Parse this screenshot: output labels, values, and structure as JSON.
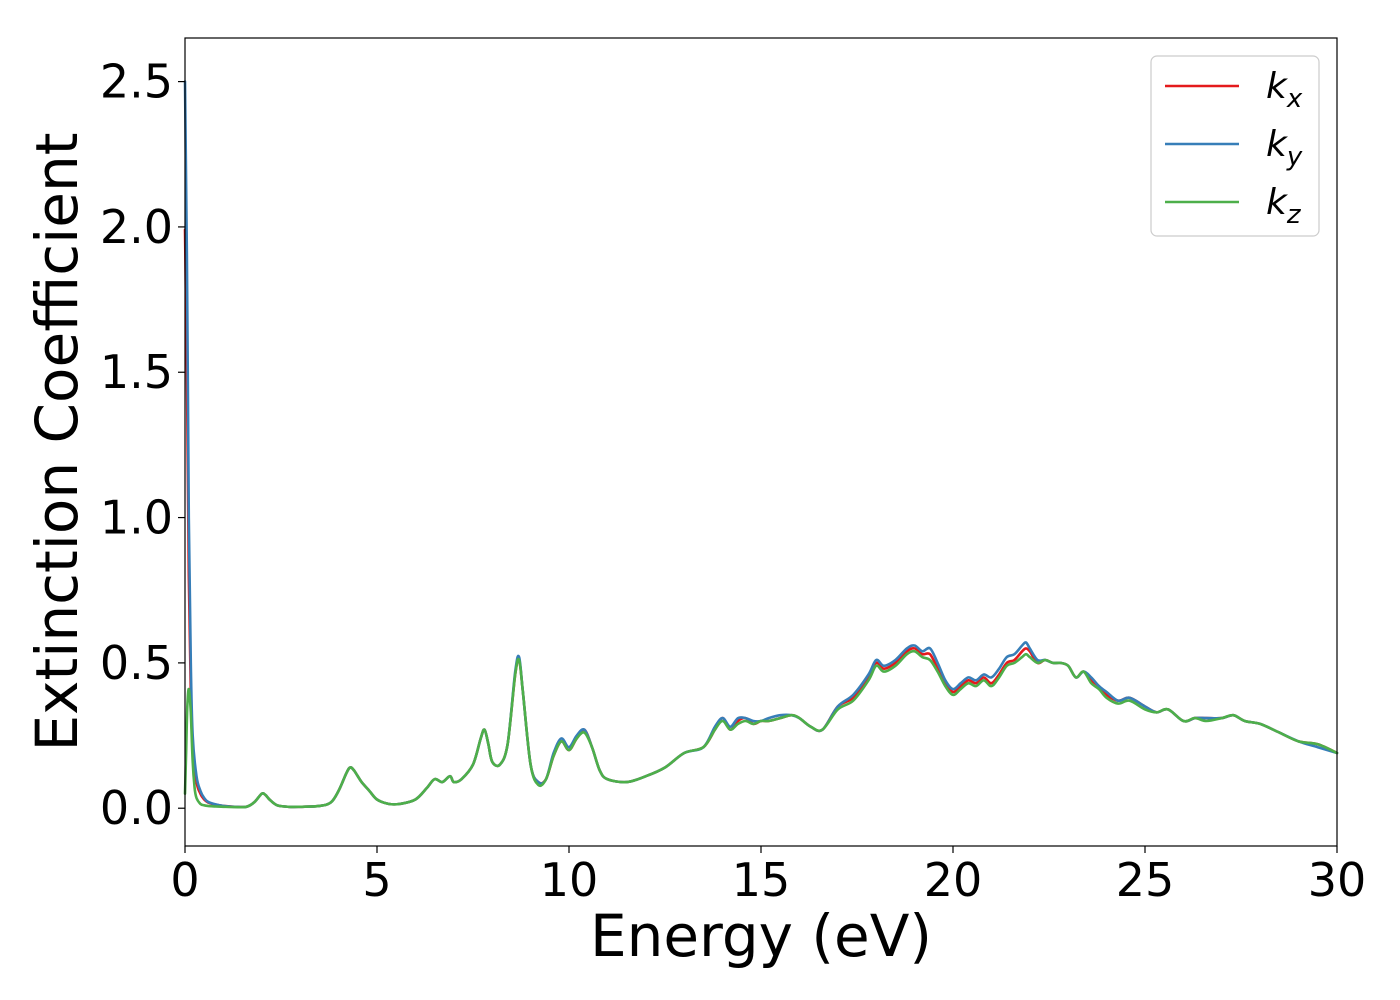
{
  "chart_data": {
    "type": "line",
    "title": "",
    "xlabel": "Energy (eV)",
    "ylabel": "Extinction Coefficient",
    "xlim": [
      0,
      30
    ],
    "ylim": [
      -0.13,
      2.65
    ],
    "xticks": [
      0,
      5,
      10,
      15,
      20,
      25,
      30
    ],
    "xtick_labels": [
      "0",
      "5",
      "10",
      "15",
      "20",
      "25",
      "30"
    ],
    "yticks": [
      0.0,
      0.5,
      1.0,
      1.5,
      2.0,
      2.5
    ],
    "ytick_labels": [
      "0.0",
      "0.5",
      "1.0",
      "1.5",
      "2.0",
      "2.5"
    ],
    "grid": false,
    "legend_position": "top-right",
    "series": [
      {
        "name": "k",
        "subscript": "x",
        "color": "#e41a1c",
        "x": [
          0.0,
          0.05,
          0.1,
          0.15,
          0.2,
          0.3,
          0.4,
          0.5,
          0.6,
          0.8,
          1.0,
          1.3,
          1.6,
          1.8,
          2.0,
          2.1,
          2.2,
          2.4,
          2.7,
          3.0,
          3.5,
          3.8,
          4.0,
          4.2,
          4.3,
          4.4,
          4.6,
          4.8,
          5.0,
          5.3,
          5.6,
          6.0,
          6.3,
          6.5,
          6.7,
          6.9,
          7.0,
          7.2,
          7.5,
          7.7,
          7.8,
          7.9,
          8.0,
          8.2,
          8.4,
          8.6,
          8.7,
          8.8,
          9.0,
          9.2,
          9.4,
          9.6,
          9.8,
          10.0,
          10.2,
          10.4,
          10.6,
          10.8,
          11.0,
          11.5,
          12.0,
          12.5,
          13.0,
          13.5,
          13.8,
          14.0,
          14.2,
          14.4,
          14.6,
          14.8,
          15.0,
          15.2,
          15.5,
          15.8,
          16.0,
          16.3,
          16.6,
          17.0,
          17.4,
          17.8,
          18.0,
          18.2,
          18.5,
          18.8,
          19.0,
          19.2,
          19.4,
          19.6,
          19.8,
          20.0,
          20.2,
          20.4,
          20.6,
          20.8,
          21.0,
          21.2,
          21.4,
          21.6,
          21.8,
          21.9,
          22.0,
          22.2,
          22.4,
          22.6,
          22.8,
          23.0,
          23.2,
          23.4,
          23.6,
          23.8,
          24.0,
          24.3,
          24.6,
          25.0,
          25.3,
          25.6,
          26.0,
          26.3,
          26.6,
          27.0,
          27.3,
          27.6,
          28.0,
          28.5,
          29.0,
          29.5,
          30.0
        ],
        "y": [
          1.99,
          1.5,
          0.8,
          0.4,
          0.2,
          0.09,
          0.05,
          0.03,
          0.02,
          0.012,
          0.008,
          0.005,
          0.005,
          0.02,
          0.05,
          0.045,
          0.03,
          0.01,
          0.005,
          0.005,
          0.008,
          0.02,
          0.06,
          0.12,
          0.14,
          0.13,
          0.09,
          0.06,
          0.03,
          0.015,
          0.015,
          0.03,
          0.07,
          0.1,
          0.09,
          0.11,
          0.09,
          0.1,
          0.15,
          0.24,
          0.27,
          0.22,
          0.16,
          0.15,
          0.22,
          0.46,
          0.51,
          0.4,
          0.15,
          0.09,
          0.1,
          0.18,
          0.23,
          0.2,
          0.24,
          0.27,
          0.21,
          0.13,
          0.1,
          0.09,
          0.11,
          0.14,
          0.19,
          0.21,
          0.27,
          0.31,
          0.27,
          0.3,
          0.31,
          0.29,
          0.3,
          0.3,
          0.31,
          0.32,
          0.31,
          0.28,
          0.27,
          0.35,
          0.38,
          0.45,
          0.5,
          0.48,
          0.5,
          0.54,
          0.55,
          0.53,
          0.53,
          0.48,
          0.43,
          0.4,
          0.42,
          0.44,
          0.43,
          0.45,
          0.43,
          0.46,
          0.5,
          0.51,
          0.54,
          0.55,
          0.54,
          0.5,
          0.51,
          0.5,
          0.5,
          0.49,
          0.45,
          0.47,
          0.44,
          0.42,
          0.39,
          0.37,
          0.38,
          0.35,
          0.33,
          0.34,
          0.3,
          0.31,
          0.31,
          0.31,
          0.32,
          0.3,
          0.29,
          0.26,
          0.23,
          0.22,
          0.19
        ]
      },
      {
        "name": "k",
        "subscript": "y",
        "color": "#377eb8",
        "x": [
          0.0,
          0.05,
          0.1,
          0.15,
          0.2,
          0.3,
          0.4,
          0.5,
          0.6,
          0.8,
          1.0,
          1.3,
          1.6,
          1.8,
          2.0,
          2.1,
          2.2,
          2.4,
          2.7,
          3.0,
          3.5,
          3.8,
          4.0,
          4.2,
          4.3,
          4.4,
          4.6,
          4.8,
          5.0,
          5.3,
          5.6,
          6.0,
          6.3,
          6.5,
          6.7,
          6.9,
          7.0,
          7.2,
          7.5,
          7.7,
          7.8,
          7.9,
          8.0,
          8.2,
          8.4,
          8.6,
          8.7,
          8.8,
          9.0,
          9.2,
          9.4,
          9.6,
          9.8,
          10.0,
          10.2,
          10.4,
          10.6,
          10.8,
          11.0,
          11.5,
          12.0,
          12.5,
          13.0,
          13.5,
          13.8,
          14.0,
          14.2,
          14.4,
          14.6,
          14.8,
          15.0,
          15.2,
          15.5,
          15.8,
          16.0,
          16.3,
          16.6,
          17.0,
          17.4,
          17.8,
          18.0,
          18.2,
          18.5,
          18.8,
          19.0,
          19.2,
          19.4,
          19.6,
          19.8,
          20.0,
          20.2,
          20.4,
          20.6,
          20.8,
          21.0,
          21.2,
          21.4,
          21.6,
          21.8,
          21.9,
          22.0,
          22.2,
          22.4,
          22.6,
          22.8,
          23.0,
          23.2,
          23.4,
          23.6,
          23.8,
          24.0,
          24.3,
          24.6,
          25.0,
          25.3,
          25.6,
          26.0,
          26.3,
          26.6,
          27.0,
          27.3,
          27.6,
          28.0,
          28.5,
          29.0,
          29.5,
          30.0
        ],
        "y": [
          2.5,
          1.9,
          1.0,
          0.5,
          0.25,
          0.11,
          0.06,
          0.035,
          0.022,
          0.013,
          0.008,
          0.005,
          0.005,
          0.02,
          0.05,
          0.045,
          0.03,
          0.01,
          0.005,
          0.005,
          0.008,
          0.02,
          0.06,
          0.12,
          0.14,
          0.13,
          0.09,
          0.06,
          0.03,
          0.015,
          0.015,
          0.03,
          0.07,
          0.1,
          0.09,
          0.11,
          0.09,
          0.1,
          0.15,
          0.24,
          0.27,
          0.22,
          0.16,
          0.15,
          0.22,
          0.47,
          0.52,
          0.4,
          0.15,
          0.09,
          0.1,
          0.19,
          0.24,
          0.21,
          0.25,
          0.27,
          0.21,
          0.13,
          0.1,
          0.09,
          0.11,
          0.14,
          0.19,
          0.21,
          0.28,
          0.31,
          0.28,
          0.31,
          0.31,
          0.3,
          0.3,
          0.31,
          0.32,
          0.32,
          0.31,
          0.28,
          0.27,
          0.35,
          0.39,
          0.46,
          0.51,
          0.49,
          0.51,
          0.55,
          0.56,
          0.54,
          0.55,
          0.5,
          0.44,
          0.41,
          0.43,
          0.45,
          0.44,
          0.46,
          0.45,
          0.48,
          0.52,
          0.53,
          0.56,
          0.57,
          0.55,
          0.51,
          0.51,
          0.5,
          0.5,
          0.49,
          0.45,
          0.47,
          0.45,
          0.42,
          0.4,
          0.37,
          0.38,
          0.35,
          0.33,
          0.34,
          0.3,
          0.31,
          0.31,
          0.31,
          0.32,
          0.3,
          0.29,
          0.26,
          0.23,
          0.21,
          0.19
        ]
      },
      {
        "name": "k",
        "subscript": "z",
        "color": "#4daf4a",
        "x": [
          0.0,
          0.03,
          0.06,
          0.1,
          0.15,
          0.2,
          0.25,
          0.3,
          0.4,
          0.5,
          0.6,
          0.8,
          1.0,
          1.3,
          1.6,
          1.8,
          2.0,
          2.1,
          2.2,
          2.4,
          2.7,
          3.0,
          3.5,
          3.8,
          4.0,
          4.2,
          4.3,
          4.4,
          4.6,
          4.8,
          5.0,
          5.3,
          5.6,
          6.0,
          6.3,
          6.5,
          6.7,
          6.9,
          7.0,
          7.2,
          7.5,
          7.7,
          7.8,
          7.9,
          8.0,
          8.2,
          8.4,
          8.6,
          8.7,
          8.8,
          9.0,
          9.2,
          9.4,
          9.6,
          9.8,
          10.0,
          10.2,
          10.4,
          10.6,
          10.8,
          11.0,
          11.5,
          12.0,
          12.5,
          13.0,
          13.5,
          13.8,
          14.0,
          14.2,
          14.4,
          14.6,
          14.8,
          15.0,
          15.2,
          15.5,
          15.8,
          16.0,
          16.3,
          16.6,
          17.0,
          17.4,
          17.8,
          18.0,
          18.2,
          18.5,
          18.8,
          19.0,
          19.2,
          19.4,
          19.6,
          19.8,
          20.0,
          20.2,
          20.4,
          20.6,
          20.8,
          21.0,
          21.2,
          21.4,
          21.6,
          21.8,
          21.9,
          22.0,
          22.2,
          22.4,
          22.6,
          22.8,
          23.0,
          23.2,
          23.4,
          23.6,
          23.8,
          24.0,
          24.3,
          24.6,
          25.0,
          25.3,
          25.6,
          26.0,
          26.3,
          26.6,
          27.0,
          27.3,
          27.6,
          28.0,
          28.5,
          29.0,
          29.5,
          30.0
        ],
        "y": [
          0.05,
          0.2,
          0.35,
          0.41,
          0.33,
          0.16,
          0.07,
          0.035,
          0.015,
          0.01,
          0.008,
          0.006,
          0.005,
          0.004,
          0.005,
          0.02,
          0.05,
          0.045,
          0.03,
          0.01,
          0.005,
          0.005,
          0.008,
          0.02,
          0.06,
          0.12,
          0.14,
          0.13,
          0.09,
          0.06,
          0.03,
          0.015,
          0.015,
          0.03,
          0.07,
          0.1,
          0.09,
          0.11,
          0.09,
          0.1,
          0.15,
          0.24,
          0.27,
          0.22,
          0.16,
          0.15,
          0.22,
          0.46,
          0.51,
          0.4,
          0.15,
          0.08,
          0.1,
          0.18,
          0.23,
          0.2,
          0.24,
          0.26,
          0.21,
          0.13,
          0.1,
          0.09,
          0.11,
          0.14,
          0.19,
          0.21,
          0.27,
          0.3,
          0.27,
          0.29,
          0.3,
          0.29,
          0.3,
          0.3,
          0.31,
          0.32,
          0.31,
          0.28,
          0.27,
          0.34,
          0.37,
          0.44,
          0.49,
          0.47,
          0.49,
          0.53,
          0.54,
          0.52,
          0.51,
          0.47,
          0.42,
          0.39,
          0.41,
          0.43,
          0.42,
          0.44,
          0.42,
          0.45,
          0.49,
          0.5,
          0.52,
          0.53,
          0.52,
          0.5,
          0.51,
          0.5,
          0.5,
          0.49,
          0.45,
          0.47,
          0.43,
          0.41,
          0.38,
          0.36,
          0.37,
          0.34,
          0.33,
          0.34,
          0.3,
          0.31,
          0.3,
          0.31,
          0.32,
          0.3,
          0.29,
          0.26,
          0.23,
          0.22,
          0.19
        ]
      }
    ]
  }
}
